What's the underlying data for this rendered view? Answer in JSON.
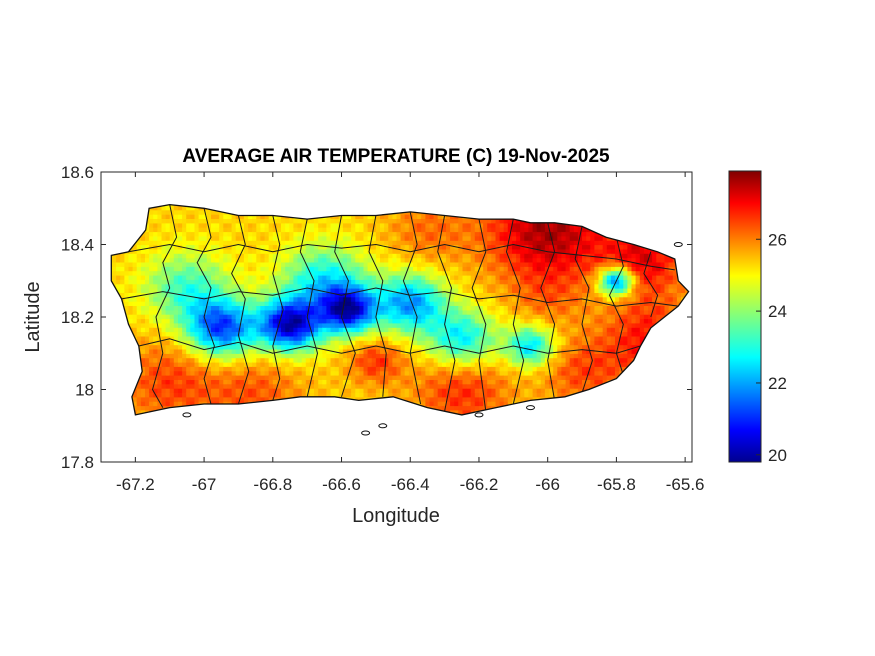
{
  "chart_data": {
    "type": "heatmap",
    "title": "AVERAGE AIR TEMPERATURE (C) 19-Nov-2025",
    "xlabel": "Longitude",
    "ylabel": "Latitude",
    "xlim": [
      -67.3,
      -65.58
    ],
    "ylim": [
      17.8,
      18.6
    ],
    "xticks": [
      -67.2,
      -67,
      -66.8,
      -66.6,
      -66.4,
      -66.2,
      -66,
      -65.8,
      -65.6
    ],
    "xtick_labels": [
      "-67.2",
      "-67",
      "-66.8",
      "-66.6",
      "-66.4",
      "-66.2",
      "-66",
      "-65.8",
      "-65.6"
    ],
    "yticks": [
      17.8,
      18,
      18.2,
      18.4,
      18.6
    ],
    "ytick_labels": [
      "17.8",
      "18",
      "18.2",
      "18.4",
      "18.6"
    ],
    "colorbar": {
      "colormap": "jet",
      "range": [
        19.8,
        27.9
      ],
      "ticks": [
        20,
        22,
        24,
        26
      ],
      "tick_labels": [
        "20",
        "22",
        "24",
        "26"
      ]
    },
    "colors": {
      "cold": "#00008f",
      "cool": "#00a0ff",
      "mild": "#7fff7f",
      "warm": "#ffb000",
      "hot": "#800000"
    },
    "temperature_field": {
      "base": 25.2,
      "hotspots": [
        {
          "lon": -66.0,
          "lat": 18.44,
          "value": 27.6,
          "spread": 0.18
        },
        {
          "lon": -65.72,
          "lat": 18.36,
          "value": 27.0,
          "spread": 0.12
        },
        {
          "lon": -65.7,
          "lat": 18.14,
          "value": 26.8,
          "spread": 0.14
        },
        {
          "lon": -67.1,
          "lat": 18.02,
          "value": 26.4,
          "spread": 0.15
        },
        {
          "lon": -66.85,
          "lat": 17.99,
          "value": 26.2,
          "spread": 0.14
        },
        {
          "lon": -66.5,
          "lat": 18.08,
          "value": 26.5,
          "spread": 0.08
        },
        {
          "lon": -66.25,
          "lat": 18.0,
          "value": 26.6,
          "spread": 0.14
        },
        {
          "lon": -65.9,
          "lat": 18.05,
          "value": 26.3,
          "spread": 0.12
        },
        {
          "lon": -66.35,
          "lat": 18.44,
          "value": 26.0,
          "spread": 0.12
        },
        {
          "lon": -66.0,
          "lat": 18.25,
          "value": 25.8,
          "spread": 0.1
        }
      ],
      "coldspots": [
        {
          "lon": -66.75,
          "lat": 18.18,
          "value": 20.3,
          "spread": 0.09
        },
        {
          "lon": -66.58,
          "lat": 18.22,
          "value": 20.8,
          "spread": 0.08
        },
        {
          "lon": -66.95,
          "lat": 18.17,
          "value": 21.3,
          "spread": 0.1
        },
        {
          "lon": -66.4,
          "lat": 18.24,
          "value": 22.0,
          "spread": 0.1
        },
        {
          "lon": -65.8,
          "lat": 18.3,
          "value": 21.0,
          "spread": 0.05
        },
        {
          "lon": -66.25,
          "lat": 18.14,
          "value": 22.6,
          "spread": 0.1
        },
        {
          "lon": -66.05,
          "lat": 18.12,
          "value": 22.5,
          "spread": 0.07
        },
        {
          "lon": -67.05,
          "lat": 18.28,
          "value": 23.3,
          "spread": 0.12
        },
        {
          "lon": -66.65,
          "lat": 18.3,
          "value": 22.8,
          "spread": 0.12
        }
      ]
    },
    "island_outline": [
      [
        -67.27,
        18.37
      ],
      [
        -67.22,
        18.38
      ],
      [
        -67.17,
        18.44
      ],
      [
        -67.16,
        18.5
      ],
      [
        -67.1,
        18.51
      ],
      [
        -67.0,
        18.5
      ],
      [
        -66.9,
        18.48
      ],
      [
        -66.8,
        18.48
      ],
      [
        -66.7,
        18.47
      ],
      [
        -66.6,
        18.48
      ],
      [
        -66.5,
        18.48
      ],
      [
        -66.4,
        18.49
      ],
      [
        -66.3,
        18.48
      ],
      [
        -66.2,
        18.47
      ],
      [
        -66.1,
        18.47
      ],
      [
        -66.05,
        18.46
      ],
      [
        -65.98,
        18.46
      ],
      [
        -65.9,
        18.45
      ],
      [
        -65.83,
        18.42
      ],
      [
        -65.75,
        18.4
      ],
      [
        -65.68,
        18.38
      ],
      [
        -65.63,
        18.36
      ],
      [
        -65.62,
        18.3
      ],
      [
        -65.59,
        18.27
      ],
      [
        -65.62,
        18.23
      ],
      [
        -65.66,
        18.2
      ],
      [
        -65.7,
        18.17
      ],
      [
        -65.73,
        18.12
      ],
      [
        -65.75,
        18.08
      ],
      [
        -65.8,
        18.03
      ],
      [
        -65.88,
        18.0
      ],
      [
        -65.95,
        17.98
      ],
      [
        -66.05,
        17.97
      ],
      [
        -66.15,
        17.95
      ],
      [
        -66.25,
        17.93
      ],
      [
        -66.35,
        17.95
      ],
      [
        -66.45,
        17.98
      ],
      [
        -66.55,
        17.97
      ],
      [
        -66.62,
        17.98
      ],
      [
        -66.72,
        17.98
      ],
      [
        -66.8,
        17.97
      ],
      [
        -66.9,
        17.96
      ],
      [
        -67.0,
        17.96
      ],
      [
        -67.1,
        17.95
      ],
      [
        -67.2,
        17.93
      ],
      [
        -67.21,
        17.98
      ],
      [
        -67.18,
        18.05
      ],
      [
        -67.19,
        18.12
      ],
      [
        -67.22,
        18.18
      ],
      [
        -67.24,
        18.25
      ],
      [
        -67.27,
        18.3
      ]
    ],
    "municipal_boundaries": [
      [
        [
          -67.1,
          18.51
        ],
        [
          -67.08,
          18.42
        ],
        [
          -67.12,
          18.35
        ],
        [
          -67.1,
          18.28
        ],
        [
          -67.14,
          18.2
        ],
        [
          -67.12,
          18.1
        ],
        [
          -67.15,
          18.0
        ],
        [
          -67.12,
          17.95
        ]
      ],
      [
        [
          -67.0,
          18.5
        ],
        [
          -66.98,
          18.42
        ],
        [
          -67.02,
          18.35
        ],
        [
          -66.98,
          18.28
        ],
        [
          -67.0,
          18.2
        ],
        [
          -66.97,
          18.12
        ],
        [
          -67.0,
          18.03
        ],
        [
          -66.98,
          17.96
        ]
      ],
      [
        [
          -66.9,
          18.48
        ],
        [
          -66.88,
          18.4
        ],
        [
          -66.92,
          18.32
        ],
        [
          -66.88,
          18.25
        ],
        [
          -66.9,
          18.15
        ],
        [
          -66.87,
          18.05
        ],
        [
          -66.9,
          17.96
        ]
      ],
      [
        [
          -66.8,
          18.48
        ],
        [
          -66.78,
          18.4
        ],
        [
          -66.8,
          18.32
        ],
        [
          -66.77,
          18.22
        ],
        [
          -66.8,
          18.12
        ],
        [
          -66.78,
          18.03
        ],
        [
          -66.8,
          17.97
        ]
      ],
      [
        [
          -66.7,
          18.47
        ],
        [
          -66.72,
          18.38
        ],
        [
          -66.68,
          18.3
        ],
        [
          -66.7,
          18.2
        ],
        [
          -66.67,
          18.1
        ],
        [
          -66.7,
          17.98
        ]
      ],
      [
        [
          -66.6,
          18.48
        ],
        [
          -66.62,
          18.38
        ],
        [
          -66.58,
          18.3
        ],
        [
          -66.6,
          18.2
        ],
        [
          -66.56,
          18.1
        ],
        [
          -66.6,
          17.98
        ]
      ],
      [
        [
          -66.5,
          18.48
        ],
        [
          -66.52,
          18.38
        ],
        [
          -66.48,
          18.3
        ],
        [
          -66.5,
          18.2
        ],
        [
          -66.47,
          18.1
        ],
        [
          -66.48,
          17.98
        ]
      ],
      [
        [
          -66.4,
          18.49
        ],
        [
          -66.38,
          18.4
        ],
        [
          -66.42,
          18.3
        ],
        [
          -66.38,
          18.2
        ],
        [
          -66.4,
          18.1
        ],
        [
          -66.37,
          17.96
        ]
      ],
      [
        [
          -66.3,
          18.48
        ],
        [
          -66.32,
          18.38
        ],
        [
          -66.28,
          18.28
        ],
        [
          -66.3,
          18.18
        ],
        [
          -66.27,
          18.08
        ],
        [
          -66.3,
          17.94
        ]
      ],
      [
        [
          -66.2,
          18.47
        ],
        [
          -66.18,
          18.38
        ],
        [
          -66.22,
          18.28
        ],
        [
          -66.18,
          18.18
        ],
        [
          -66.2,
          18.08
        ],
        [
          -66.18,
          17.94
        ]
      ],
      [
        [
          -66.1,
          18.47
        ],
        [
          -66.12,
          18.38
        ],
        [
          -66.08,
          18.28
        ],
        [
          -66.1,
          18.18
        ],
        [
          -66.07,
          18.08
        ],
        [
          -66.1,
          17.96
        ]
      ],
      [
        [
          -66.0,
          18.46
        ],
        [
          -65.98,
          18.38
        ],
        [
          -66.02,
          18.28
        ],
        [
          -65.98,
          18.18
        ],
        [
          -66.0,
          18.08
        ],
        [
          -65.98,
          17.97
        ]
      ],
      [
        [
          -65.9,
          18.45
        ],
        [
          -65.92,
          18.36
        ],
        [
          -65.88,
          18.28
        ],
        [
          -65.9,
          18.18
        ],
        [
          -65.87,
          18.08
        ],
        [
          -65.9,
          17.99
        ]
      ],
      [
        [
          -65.8,
          18.42
        ],
        [
          -65.78,
          18.34
        ],
        [
          -65.82,
          18.26
        ],
        [
          -65.78,
          18.18
        ],
        [
          -65.8,
          18.1
        ],
        [
          -65.78,
          18.04
        ]
      ],
      [
        [
          -65.7,
          18.38
        ],
        [
          -65.72,
          18.32
        ],
        [
          -65.68,
          18.26
        ],
        [
          -65.7,
          18.2
        ]
      ],
      [
        [
          -67.22,
          18.38
        ],
        [
          -67.1,
          18.4
        ],
        [
          -67.0,
          18.38
        ],
        [
          -66.9,
          18.4
        ],
        [
          -66.8,
          18.38
        ],
        [
          -66.7,
          18.4
        ],
        [
          -66.6,
          18.39
        ],
        [
          -66.5,
          18.4
        ],
        [
          -66.4,
          18.38
        ],
        [
          -66.3,
          18.4
        ],
        [
          -66.2,
          18.38
        ],
        [
          -66.1,
          18.4
        ],
        [
          -66.0,
          18.38
        ],
        [
          -65.9,
          18.37
        ],
        [
          -65.8,
          18.36
        ],
        [
          -65.7,
          18.34
        ],
        [
          -65.63,
          18.33
        ]
      ],
      [
        [
          -67.24,
          18.25
        ],
        [
          -67.12,
          18.27
        ],
        [
          -67.0,
          18.25
        ],
        [
          -66.9,
          18.27
        ],
        [
          -66.8,
          18.26
        ],
        [
          -66.7,
          18.28
        ],
        [
          -66.6,
          18.26
        ],
        [
          -66.5,
          18.28
        ],
        [
          -66.4,
          18.26
        ],
        [
          -66.3,
          18.27
        ],
        [
          -66.2,
          18.25
        ],
        [
          -66.1,
          18.26
        ],
        [
          -66.0,
          18.24
        ],
        [
          -65.9,
          18.25
        ],
        [
          -65.8,
          18.23
        ],
        [
          -65.7,
          18.24
        ],
        [
          -65.62,
          18.23
        ]
      ],
      [
        [
          -67.19,
          18.12
        ],
        [
          -67.1,
          18.14
        ],
        [
          -67.0,
          18.11
        ],
        [
          -66.9,
          18.13
        ],
        [
          -66.8,
          18.1
        ],
        [
          -66.7,
          18.12
        ],
        [
          -66.6,
          18.1
        ],
        [
          -66.5,
          18.12
        ],
        [
          -66.4,
          18.1
        ],
        [
          -66.3,
          18.12
        ],
        [
          -66.2,
          18.1
        ],
        [
          -66.1,
          18.12
        ],
        [
          -66.0,
          18.1
        ],
        [
          -65.9,
          18.11
        ],
        [
          -65.8,
          18.1
        ],
        [
          -65.73,
          18.12
        ]
      ]
    ],
    "offshore_islets": [
      [
        -66.53,
        17.88
      ],
      [
        -66.48,
        17.9
      ],
      [
        -66.2,
        17.93
      ],
      [
        -66.05,
        17.95
      ],
      [
        -65.62,
        18.4
      ],
      [
        -67.05,
        17.93
      ]
    ],
    "grid": false,
    "colorbar_placement": "right"
  }
}
